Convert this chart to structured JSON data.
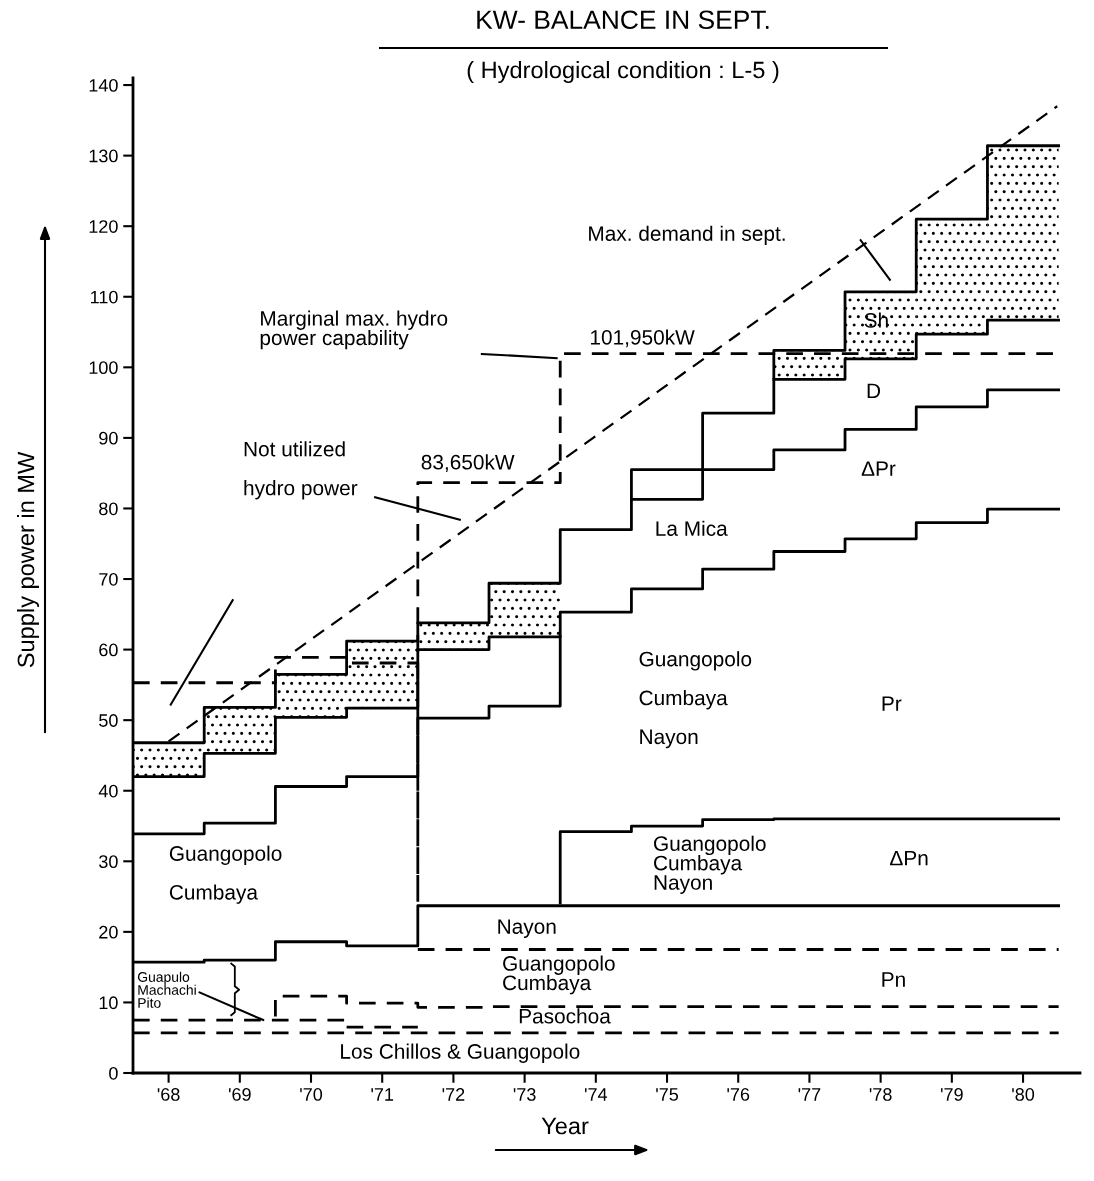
{
  "chart_data": {
    "type": "step",
    "title": "KW- BALANCE IN SEPT.",
    "subtitle": "( Hydrological condition : L-5 )",
    "xlabel": "Year",
    "ylabel": "Supply power in MW",
    "x": [
      67.5,
      68.5,
      69.5,
      70.5,
      71.5,
      72.5,
      73.5,
      74.5,
      75.5,
      76.5,
      77.5,
      78.5,
      79.5,
      80.5
    ],
    "xlim": [
      67.5,
      80.8
    ],
    "xticks": [
      {
        "value": 68,
        "label": "'68"
      },
      {
        "value": 69,
        "label": "'69"
      },
      {
        "value": 70,
        "label": "'70"
      },
      {
        "value": 71,
        "label": "'71"
      },
      {
        "value": 72,
        "label": "'72"
      },
      {
        "value": 73,
        "label": "'73"
      },
      {
        "value": 74,
        "label": "'74"
      },
      {
        "value": 75,
        "label": "'75"
      },
      {
        "value": 76,
        "label": "'76"
      },
      {
        "value": 77,
        "label": "'77"
      },
      {
        "value": 78,
        "label": "'78"
      },
      {
        "value": 79,
        "label": "'79"
      },
      {
        "value": 80,
        "label": "'80"
      }
    ],
    "ylim": [
      0,
      141
    ],
    "yticks": [
      0,
      10,
      20,
      30,
      40,
      50,
      60,
      70,
      80,
      90,
      100,
      110,
      120,
      130,
      140
    ],
    "grid": false,
    "legend": false,
    "marker": "none",
    "series": [
      {
        "type": "bar",
        "color": "#000000",
        "x": [
          68,
          69,
          70,
          71,
          72,
          73,
          74,
          75,
          76,
          77,
          78,
          79,
          80
        ],
        "base": [
          42,
          45.3,
          50.4,
          51.7,
          60,
          61.8,
          null,
          null,
          null,
          98.3,
          101.2,
          104.7,
          106.7
        ],
        "values": [
          4.8,
          6.5,
          6.1,
          9.5,
          3.8,
          7.6,
          null,
          null,
          null,
          4.1,
          9.5,
          16.3,
          24.7
        ]
      },
      {
        "color": "#000000",
        "line_style": "solid",
        "values": [
          46.8,
          51.8,
          56.5,
          61.2,
          63.8,
          69.4,
          77,
          81.3,
          93.5,
          102.4,
          110.7,
          121,
          131.4,
          131.4
        ]
      },
      {
        "color": "#000000",
        "line_style": "solid",
        "values": [
          42,
          45.3,
          50.4,
          51.7,
          60,
          61.8,
          65.3,
          68.6,
          71.4,
          73.9,
          75.7,
          78,
          79.9,
          79.9
        ]
      },
      {
        "color": "#000000",
        "line_style": "solid",
        "x": [
          74.5,
          74.5,
          75.5,
          76.5,
          77.5,
          78.5,
          79.5,
          80.5
        ],
        "values": [
          81.3,
          85.5,
          85.5,
          88.3,
          91.2,
          94.4,
          96.8,
          96.8
        ]
      },
      {
        "color": "#000000",
        "line_style": "solid",
        "x": [
          76.5,
          77.5,
          78.5,
          79.5,
          80.5
        ],
        "values": [
          98.3,
          101.2,
          104.7,
          106.7,
          106.7
        ]
      },
      {
        "color": "#000000",
        "line_style": "solid",
        "x": [
          67.5,
          68.5,
          69.5,
          70.5,
          71.5,
          72.5,
          73.5,
          73.5
        ],
        "values": [
          33.9,
          35.4,
          40.6,
          42,
          50.3,
          52,
          52,
          61.8
        ]
      },
      {
        "color": "#000000",
        "line_style": "solid",
        "values": [
          15.7,
          16,
          18.6,
          18,
          23.7,
          23.7,
          23.7,
          23.7,
          23.7,
          23.7,
          23.7,
          23.7,
          23.7,
          23.7
        ]
      },
      {
        "color": "#000000",
        "line_style": "solid",
        "x": [
          73.5,
          73.5,
          74.5,
          75.5,
          76.5,
          77.5,
          78.5,
          79.5,
          80.5
        ],
        "values": [
          24.1,
          34.2,
          35,
          35.9,
          36,
          36,
          36,
          36,
          36
        ]
      },
      {
        "color": "#000000",
        "line_style": "dashed",
        "x": [
          67.5,
          68.5,
          69.5,
          70.5,
          71.5,
          71.5,
          72.5,
          73.5,
          74.5,
          75.5,
          76.5,
          77.5,
          78.5,
          79.5,
          80.5
        ],
        "values": [
          55.3,
          55.3,
          58.9,
          58.1,
          24.2,
          83.65,
          83.65,
          101.95,
          101.95,
          101.95,
          101.95,
          101.95,
          101.95,
          101.95,
          101.95
        ]
      },
      {
        "color": "#000000",
        "line_style": "dashed",
        "x": [
          71.5,
          72.5,
          73.5,
          74.5,
          75.5,
          76.5,
          77.5,
          78.5,
          79.5,
          80.5
        ],
        "values": [
          17.5,
          17.5,
          17.5,
          17.5,
          17.5,
          17.5,
          17.5,
          17.5,
          17.5,
          17.5
        ]
      },
      {
        "color": "#000000",
        "line_style": "dashed",
        "x": [
          69.5,
          69.5,
          70.5,
          71.5,
          72.5,
          73.5,
          74.5,
          75.5,
          76.5,
          77.5,
          78.5,
          79.5,
          80.5
        ],
        "values": [
          8,
          10.9,
          9.9,
          9.3,
          9.4,
          9.4,
          9.4,
          9.4,
          9.4,
          9.4,
          9.4,
          9.4,
          9.4
        ]
      },
      {
        "color": "#000000",
        "line_style": "dashed",
        "x": [
          67.5,
          68.5,
          69.5,
          70.5
        ],
        "values": [
          7.5,
          7.5,
          7.5,
          7.5
        ]
      },
      {
        "color": "#000000",
        "line_style": "dashed",
        "x": [
          70.5,
          71.5
        ],
        "values": [
          6.5,
          6.5
        ]
      },
      {
        "color": "#000000",
        "line_style": "dashed",
        "values": [
          5.7,
          5.7,
          5.7,
          5.7,
          5.7,
          5.7,
          5.7,
          5.7,
          5.7,
          5.7,
          5.7,
          5.7,
          5.7,
          5.7
        ]
      },
      {
        "type": "line",
        "color": "#000000",
        "line_style": "dashed",
        "x": [
          68,
          80.48
        ],
        "values": [
          47,
          137
        ]
      }
    ],
    "annotations": [
      "Max. demand in sept.",
      "Marginal max. hydro\npower capability",
      "101,950kW",
      "Not utilized\n\nhydro power",
      "83,650kW",
      "Sh",
      "D",
      "ΔPr",
      "La Mica",
      "Guangopolo\n\nCumbaya\n\nNayon",
      "Pr",
      "Guangopolo\nCumbaya\nNayon",
      "ΔPn",
      "Guangopolo\n\nCumbaya",
      "Nayon",
      "Guangopolo\nCumbaya",
      "Pn",
      "Pasochoa",
      "Los Chillos & Guangopolo",
      {
        "text": "Guapulo\nMachachi\nPito",
        "x": 69.33,
        "y": 7.5
      }
    ]
  }
}
